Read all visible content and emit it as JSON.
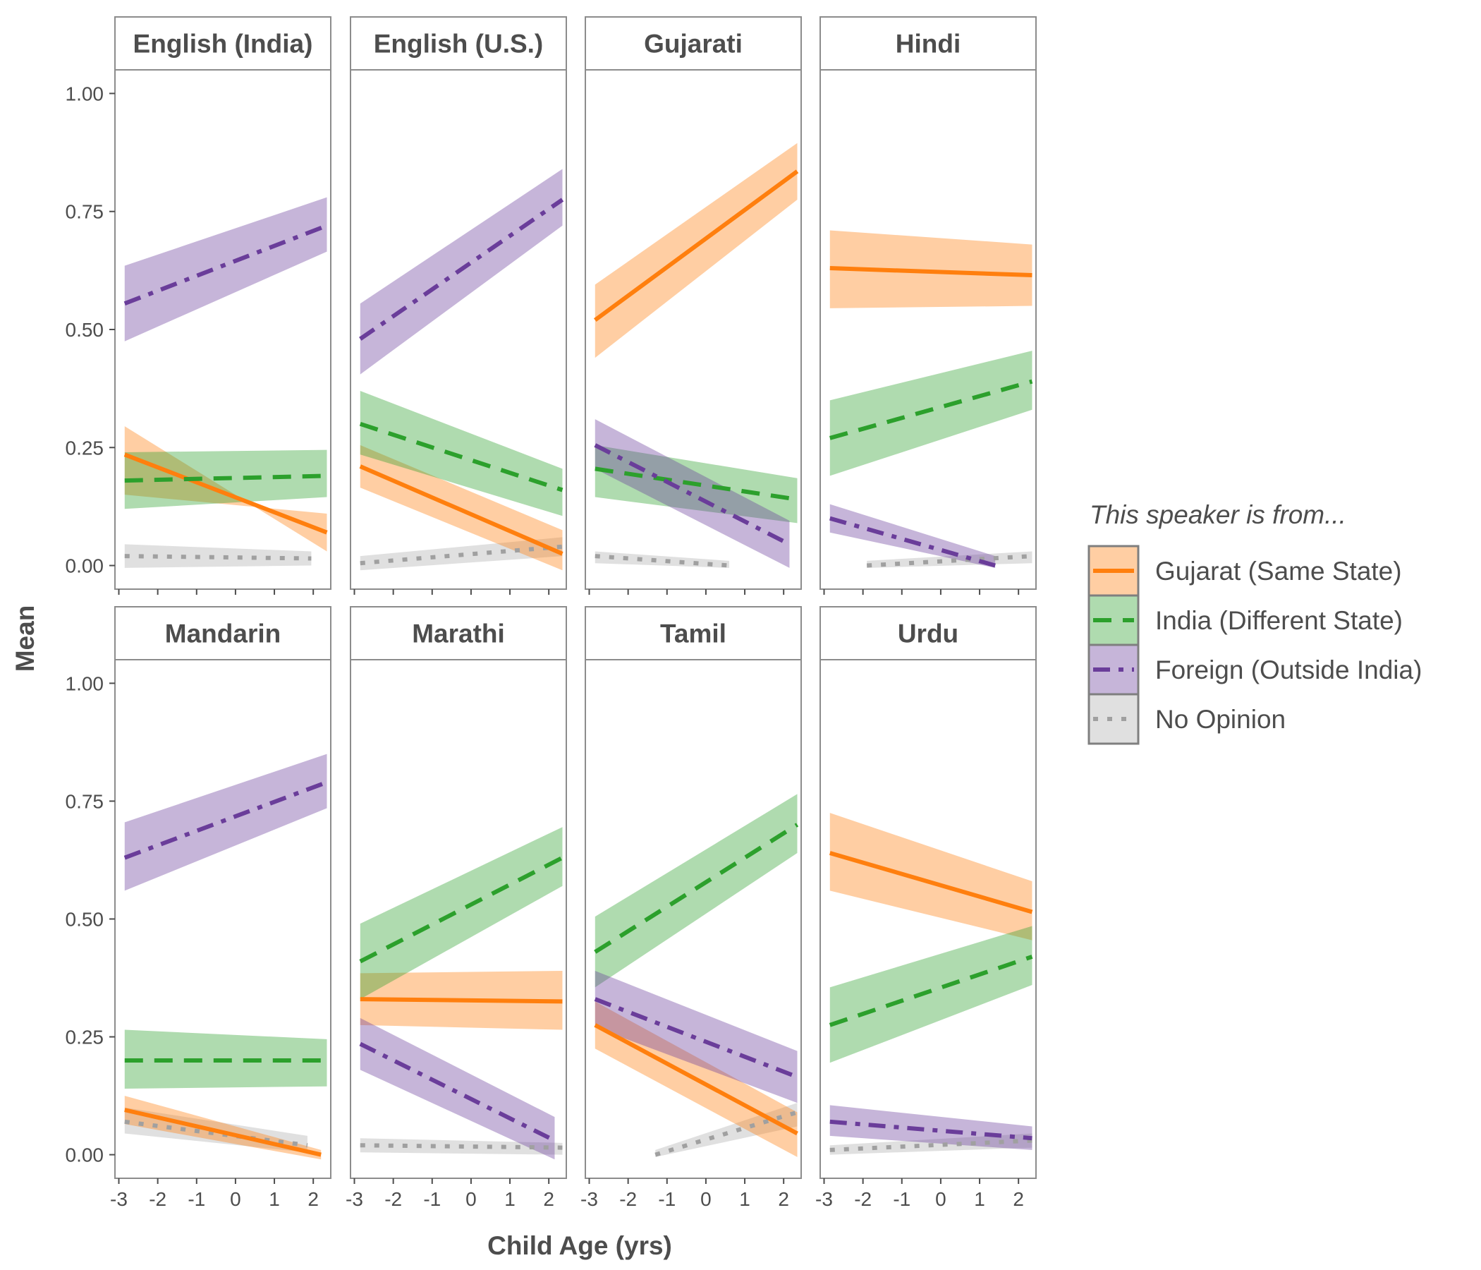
{
  "chart_data": {
    "type": "line",
    "xlabel": "Child Age (yrs)",
    "ylabel": "Mean",
    "xlim": [
      -3.1,
      2.45
    ],
    "ylim": [
      -0.05,
      1.05
    ],
    "x_ticks": [
      -3,
      -2,
      -1,
      0,
      1,
      2
    ],
    "x_tick_labels": [
      "-3",
      "-2",
      "-1",
      "0",
      "1",
      "2"
    ],
    "y_ticks": [
      0,
      0.25,
      0.5,
      0.75,
      1
    ],
    "y_tick_labels": [
      "0.00",
      "0.25",
      "0.50",
      "0.75",
      "1.00"
    ],
    "grid": false,
    "legend": {
      "title": "This speaker is from...",
      "position": "right"
    },
    "series": [
      {
        "key": "gujarat",
        "name": "Gujarat (Same State)",
        "color": "#ff7f0e",
        "dash": "solid"
      },
      {
        "key": "india",
        "name": "India (Different State)",
        "color": "#2ca02c",
        "dash": "dashed"
      },
      {
        "key": "foreign",
        "name": "Foreign (Outside India)",
        "color": "#6a3d9a",
        "dash": "dotdash"
      },
      {
        "key": "noop",
        "name": "No Opinion",
        "color": "#a0a0a0",
        "dash": "dotted"
      }
    ],
    "panels": [
      {
        "title": "English (India)",
        "lines": {
          "gujarat": {
            "x": [
              -2.85,
              2.35
            ],
            "y": [
              0.235,
              0.07
            ],
            "band": [
              [
                0.295,
                0.03
              ],
              [
                0.15,
                0.11
              ]
            ]
          },
          "india": {
            "x": [
              -2.85,
              2.35
            ],
            "y": [
              0.18,
              0.19
            ],
            "band": [
              [
                0.24,
                0.245
              ],
              [
                0.12,
                0.145
              ]
            ]
          },
          "foreign": {
            "x": [
              -2.85,
              2.35
            ],
            "y": [
              0.555,
              0.72
            ],
            "band": [
              [
                0.635,
                0.78
              ],
              [
                0.475,
                0.665
              ]
            ]
          },
          "noop": {
            "x": [
              -2.85,
              1.95
            ],
            "y": [
              0.02,
              0.015
            ],
            "band": [
              [
                0.045,
                0.03
              ],
              [
                -0.005,
                0.0
              ]
            ]
          }
        }
      },
      {
        "title": "English (U.S.)",
        "lines": {
          "gujarat": {
            "x": [
              -2.85,
              2.35
            ],
            "y": [
              0.21,
              0.025
            ],
            "band": [
              [
                0.255,
                0.075
              ],
              [
                0.165,
                -0.01
              ]
            ]
          },
          "india": {
            "x": [
              -2.85,
              2.35
            ],
            "y": [
              0.3,
              0.16
            ],
            "band": [
              [
                0.37,
                0.205
              ],
              [
                0.235,
                0.105
              ]
            ]
          },
          "foreign": {
            "x": [
              -2.85,
              2.35
            ],
            "y": [
              0.48,
              0.775
            ],
            "band": [
              [
                0.555,
                0.84
              ],
              [
                0.405,
                0.72
              ]
            ]
          },
          "noop": {
            "x": [
              -2.85,
              2.35
            ],
            "y": [
              0.005,
              0.04
            ],
            "band": [
              [
                0.02,
                0.06
              ],
              [
                -0.01,
                0.02
              ]
            ]
          }
        }
      },
      {
        "title": "Gujarati",
        "lines": {
          "gujarat": {
            "x": [
              -2.85,
              2.35
            ],
            "y": [
              0.52,
              0.835
            ],
            "band": [
              [
                0.595,
                0.895
              ],
              [
                0.44,
                0.775
              ]
            ]
          },
          "india": {
            "x": [
              -2.85,
              2.35
            ],
            "y": [
              0.205,
              0.14
            ],
            "band": [
              [
                0.255,
                0.185
              ],
              [
                0.145,
                0.09
              ]
            ]
          },
          "foreign": {
            "x": [
              -2.85,
              2.15
            ],
            "y": [
              0.255,
              0.045
            ],
            "band": [
              [
                0.31,
                0.095
              ],
              [
                0.205,
                -0.005
              ]
            ]
          },
          "noop": {
            "x": [
              -2.85,
              0.6
            ],
            "y": [
              0.02,
              0.0
            ],
            "band": [
              [
                0.03,
                0.01
              ],
              [
                0.005,
                -0.005
              ]
            ]
          }
        }
      },
      {
        "title": "Hindi",
        "lines": {
          "gujarat": {
            "x": [
              -2.85,
              2.35
            ],
            "y": [
              0.63,
              0.615
            ],
            "band": [
              [
                0.71,
                0.68
              ],
              [
                0.545,
                0.55
              ]
            ]
          },
          "india": {
            "x": [
              -2.85,
              2.35
            ],
            "y": [
              0.27,
              0.39
            ],
            "band": [
              [
                0.35,
                0.455
              ],
              [
                0.19,
                0.33
              ]
            ]
          },
          "foreign": {
            "x": [
              -2.85,
              1.4
            ],
            "y": [
              0.1,
              0.0
            ],
            "band": [
              [
                0.13,
                0.02
              ],
              [
                0.07,
                -0.005
              ]
            ]
          },
          "noop": {
            "x": [
              -1.9,
              2.35
            ],
            "y": [
              0.0,
              0.02
            ],
            "band": [
              [
                0.01,
                0.03
              ],
              [
                -0.005,
                0.005
              ]
            ]
          }
        }
      },
      {
        "title": "Mandarin",
        "lines": {
          "gujarat": {
            "x": [
              -2.85,
              2.2
            ],
            "y": [
              0.095,
              0.0
            ],
            "band": [
              [
                0.125,
                0.01
              ],
              [
                0.065,
                -0.01
              ]
            ]
          },
          "india": {
            "x": [
              -2.85,
              2.35
            ],
            "y": [
              0.2,
              0.2
            ],
            "band": [
              [
                0.265,
                0.245
              ],
              [
                0.14,
                0.145
              ]
            ]
          },
          "foreign": {
            "x": [
              -2.85,
              2.35
            ],
            "y": [
              0.63,
              0.79
            ],
            "band": [
              [
                0.705,
                0.85
              ],
              [
                0.56,
                0.735
              ]
            ]
          },
          "noop": {
            "x": [
              -2.85,
              1.85
            ],
            "y": [
              0.07,
              0.02
            ],
            "band": [
              [
                0.1,
                0.04
              ],
              [
                0.045,
                0.005
              ]
            ]
          }
        }
      },
      {
        "title": "Marathi",
        "lines": {
          "gujarat": {
            "x": [
              -2.85,
              2.35
            ],
            "y": [
              0.33,
              0.325
            ],
            "band": [
              [
                0.385,
                0.39
              ],
              [
                0.275,
                0.265
              ]
            ]
          },
          "india": {
            "x": [
              -2.85,
              2.35
            ],
            "y": [
              0.41,
              0.63
            ],
            "band": [
              [
                0.49,
                0.695
              ],
              [
                0.33,
                0.57
              ]
            ]
          },
          "foreign": {
            "x": [
              -2.85,
              2.15
            ],
            "y": [
              0.235,
              0.03
            ],
            "band": [
              [
                0.29,
                0.08
              ],
              [
                0.18,
                -0.01
              ]
            ]
          },
          "noop": {
            "x": [
              -2.85,
              2.35
            ],
            "y": [
              0.02,
              0.015
            ],
            "band": [
              [
                0.035,
                0.025
              ],
              [
                0.005,
                0.0
              ]
            ]
          }
        }
      },
      {
        "title": "Tamil",
        "lines": {
          "gujarat": {
            "x": [
              -2.85,
              2.35
            ],
            "y": [
              0.275,
              0.045
            ],
            "band": [
              [
                0.325,
                0.09
              ],
              [
                0.225,
                -0.005
              ]
            ]
          },
          "india": {
            "x": [
              -2.85,
              2.35
            ],
            "y": [
              0.43,
              0.7
            ],
            "band": [
              [
                0.505,
                0.765
              ],
              [
                0.355,
                0.64
              ]
            ]
          },
          "foreign": {
            "x": [
              -2.85,
              2.35
            ],
            "y": [
              0.33,
              0.165
            ],
            "band": [
              [
                0.39,
                0.22
              ],
              [
                0.27,
                0.11
              ]
            ]
          },
          "noop": {
            "x": [
              -1.3,
              2.35
            ],
            "y": [
              0.0,
              0.09
            ],
            "band": [
              [
                0.01,
                0.11
              ],
              [
                -0.005,
                0.06
              ]
            ]
          }
        }
      },
      {
        "title": "Urdu",
        "lines": {
          "gujarat": {
            "x": [
              -2.85,
              2.35
            ],
            "y": [
              0.64,
              0.515
            ],
            "band": [
              [
                0.725,
                0.58
              ],
              [
                0.56,
                0.455
              ]
            ]
          },
          "india": {
            "x": [
              -2.85,
              2.35
            ],
            "y": [
              0.275,
              0.42
            ],
            "band": [
              [
                0.355,
                0.485
              ],
              [
                0.195,
                0.36
              ]
            ]
          },
          "foreign": {
            "x": [
              -2.85,
              2.35
            ],
            "y": [
              0.07,
              0.035
            ],
            "band": [
              [
                0.105,
                0.06
              ],
              [
                0.04,
                0.01
              ]
            ]
          },
          "noop": {
            "x": [
              -2.85,
              2.35
            ],
            "y": [
              0.01,
              0.03
            ],
            "band": [
              [
                0.02,
                0.045
              ],
              [
                0.0,
                0.015
              ]
            ]
          }
        }
      }
    ]
  }
}
